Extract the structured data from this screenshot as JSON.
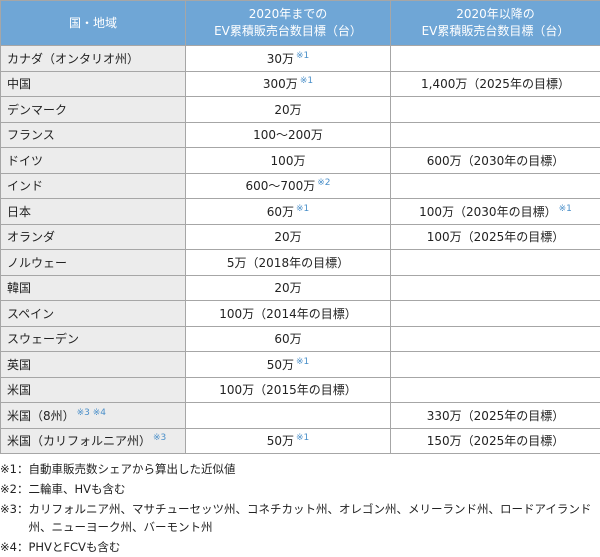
{
  "table": {
    "header": [
      [
        "国・地域"
      ],
      [
        "2020年までの",
        "EV累積販売台数目標（台）"
      ],
      [
        "2020年以降の",
        "EV累積販売台数目標（台）"
      ]
    ],
    "rows": [
      [
        {
          "text": "カナダ（オンタリオ州）"
        },
        {
          "text": "30万",
          "note": "※1"
        },
        null
      ],
      [
        {
          "text": "中国"
        },
        {
          "text": "300万",
          "note": "※1"
        },
        {
          "text": "1,400万（2025年の目標）"
        }
      ],
      [
        {
          "text": "デンマーク"
        },
        {
          "text": "20万"
        },
        null
      ],
      [
        {
          "text": "フランス"
        },
        {
          "text": "100～200万"
        },
        null
      ],
      [
        {
          "text": "ドイツ"
        },
        {
          "text": "100万"
        },
        {
          "text": "600万（2030年の目標）"
        }
      ],
      [
        {
          "text": "インド"
        },
        {
          "text": "600～700万",
          "note": "※2"
        },
        null
      ],
      [
        {
          "text": "日本"
        },
        {
          "text": "60万",
          "note": "※1"
        },
        {
          "text": "100万（2030年の目標）",
          "note": "※1"
        }
      ],
      [
        {
          "text": "オランダ"
        },
        {
          "text": "20万"
        },
        {
          "text": "100万（2025年の目標）"
        }
      ],
      [
        {
          "text": "ノルウェー"
        },
        {
          "text": "5万（2018年の目標）"
        },
        null
      ],
      [
        {
          "text": "韓国"
        },
        {
          "text": "20万"
        },
        null
      ],
      [
        {
          "text": "スペイン"
        },
        {
          "text": "100万（2014年の目標）"
        },
        null
      ],
      [
        {
          "text": "スウェーデン"
        },
        {
          "text": "60万"
        },
        null
      ],
      [
        {
          "text": "英国"
        },
        {
          "text": "50万",
          "note": "※1"
        },
        null
      ],
      [
        {
          "text": "米国"
        },
        {
          "text": "100万（2015年の目標）"
        },
        null
      ],
      [
        {
          "text": "米国（8州）",
          "note": "※3 ※4"
        },
        null,
        {
          "text": "330万（2025年の目標）"
        }
      ],
      [
        {
          "text": "米国（カリフォルニア州）",
          "note": "※3"
        },
        {
          "text": "50万",
          "note": "※1"
        },
        {
          "text": "150万（2025年の目標）"
        }
      ]
    ]
  },
  "footnotes": [
    {
      "mark": "※1：",
      "text": "自動車販売数シェアから算出した近似値"
    },
    {
      "mark": "※2：",
      "text": "二輪車、HVも含む"
    },
    {
      "mark": "※3：",
      "text": "カリフォルニア州、マサチューセッツ州、コネチカット州、オレゴン州、メリーランド州、ロードアイランド州、ニューヨーク州、バーモント州"
    },
    {
      "mark": "※4：",
      "text": "PHVとFCVも含む"
    }
  ]
}
